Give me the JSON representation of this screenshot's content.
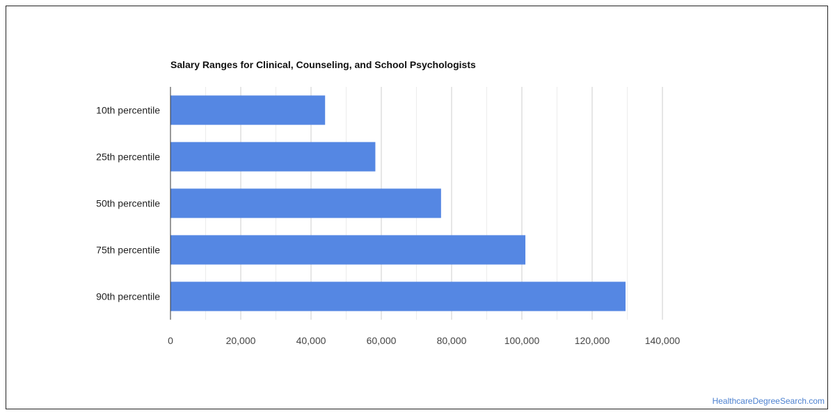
{
  "chart_data": {
    "type": "bar",
    "orientation": "horizontal",
    "title": "Salary Ranges for Clinical, Counseling, and School Psychologists",
    "categories": [
      "10th percentile",
      "25th percentile",
      "50th percentile",
      "75th percentile",
      "90th percentile"
    ],
    "values": [
      44000,
      58300,
      77000,
      101000,
      129500
    ],
    "xlim": [
      0,
      140000
    ],
    "x_ticks": [
      0,
      20000,
      40000,
      60000,
      80000,
      100000,
      120000,
      140000
    ],
    "x_tick_labels": [
      "0",
      "20,000",
      "40,000",
      "60,000",
      "80,000",
      "100,000",
      "120,000",
      "140,000"
    ],
    "xlabel": "",
    "ylabel": "",
    "grid": true,
    "legend": "none",
    "bar_color": "#5587e3"
  },
  "watermark": "HealthcareDegreeSearch.com"
}
